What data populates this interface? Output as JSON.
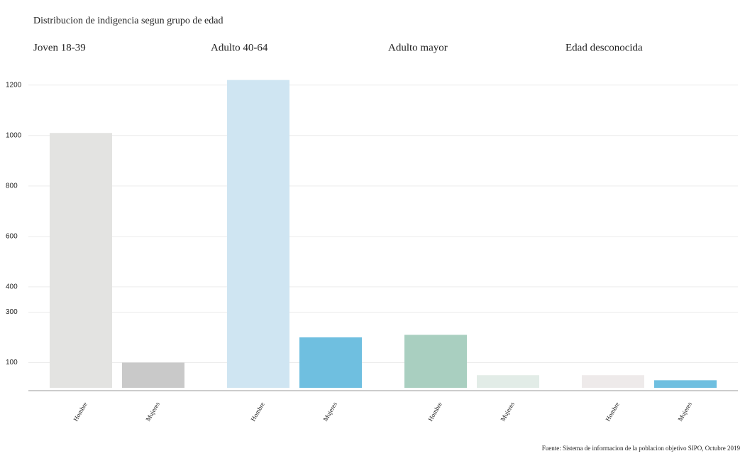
{
  "chart_data": {
    "type": "bar",
    "title": "Distribucion de indigencia segun grupo de edad",
    "groups": [
      {
        "name": "Joven 18-39",
        "categories": [
          "Hombre",
          "Mujeres"
        ],
        "values": [
          1010,
          100
        ],
        "colors": [
          "#e3e3e1",
          "#c9c9c9"
        ]
      },
      {
        "name": "Adulto 40-64",
        "categories": [
          "Hombre",
          "Mujeres"
        ],
        "values": [
          1220,
          200
        ],
        "colors": [
          "#cfe5f2",
          "#6fbfe0"
        ]
      },
      {
        "name": "Adulto mayor",
        "categories": [
          "Hombre",
          "Mujeres"
        ],
        "values": [
          210,
          50
        ],
        "colors": [
          "#a9cfc0",
          "#e2ece7"
        ]
      },
      {
        "name": "Edad desconocida",
        "categories": [
          "Hombre",
          "Mujeres"
        ],
        "values": [
          50,
          30
        ],
        "colors": [
          "#eeeaea",
          "#6fbfe0"
        ]
      }
    ],
    "ylim": [
      0,
      1250
    ],
    "yticks": [
      100,
      300,
      400,
      600,
      800,
      1000,
      1200
    ],
    "grid": true,
    "source": "Fuente: Sistema de informacion de la poblacion objetivo SIPO, Octubre 2019"
  }
}
